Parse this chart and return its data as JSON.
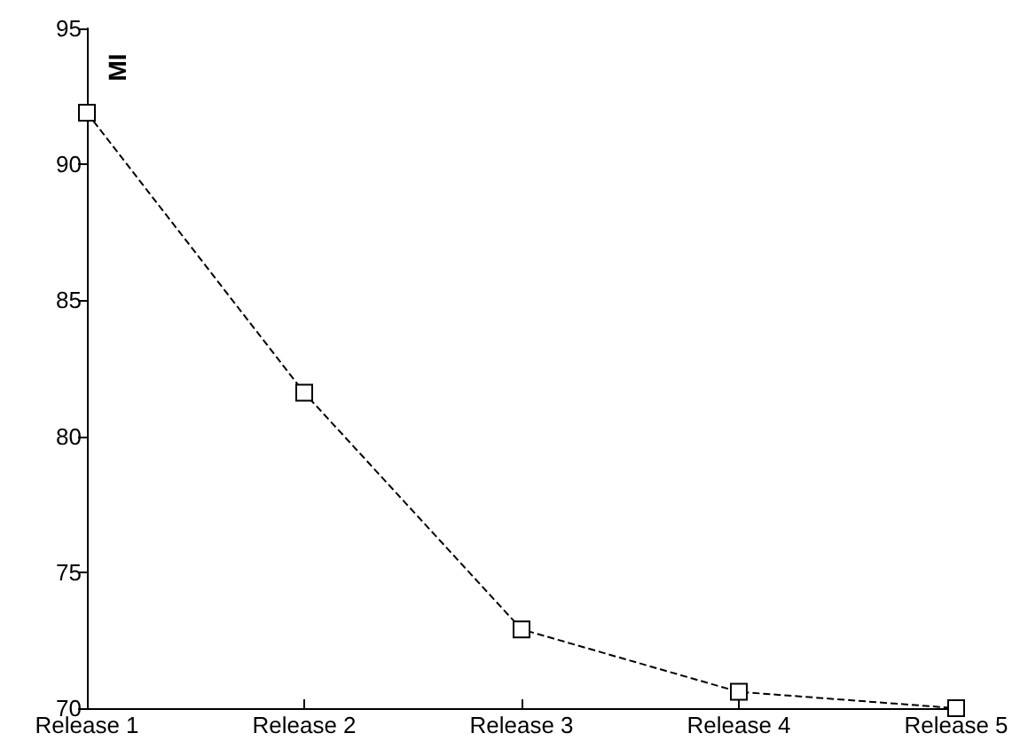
{
  "chart_data": {
    "type": "line",
    "ylabel": "MI",
    "categories": [
      "Release 1",
      "Release 2",
      "Release 3",
      "Release 4",
      "Release 5"
    ],
    "series": [
      {
        "color": "#000000",
        "values": [
          91.9,
          81.6,
          72.9,
          70.6,
          70.0
        ]
      }
    ],
    "ylim": [
      70,
      95
    ],
    "yticks": [
      70,
      75,
      80,
      85,
      90,
      95
    ],
    "grid": false,
    "marker": "square",
    "line_style": "dashed"
  }
}
